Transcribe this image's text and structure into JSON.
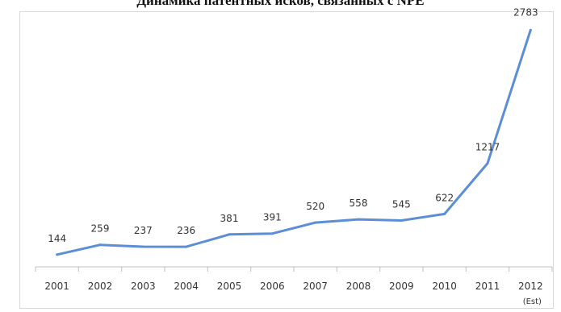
{
  "chart_data": {
    "type": "line",
    "title": "Динамика патентных исков, связанных с NPE",
    "categories": [
      "2001",
      "2002",
      "2003",
      "2004",
      "2005",
      "2006",
      "2007",
      "2008",
      "2009",
      "2010",
      "2011",
      "2012"
    ],
    "category_sublabels": [
      "",
      "",
      "",
      "",
      "",
      "",
      "",
      "",
      "",
      "",
      "",
      "(Est)"
    ],
    "series": [
      {
        "values": [
          144,
          259,
          237,
          236,
          381,
          391,
          520,
          558,
          545,
          622,
          1217,
          2783
        ],
        "color": "#5b8ed6"
      }
    ],
    "data_labels": [
      "144",
      "259",
      "237",
      "236",
      "381",
      "391",
      "520",
      "558",
      "545",
      "622",
      "1217",
      "2783"
    ],
    "xlabel": "",
    "ylabel": "",
    "ylim": [
      0,
      2900
    ],
    "grid": false,
    "legend": "none",
    "axis_color": "#bfbfbf"
  }
}
